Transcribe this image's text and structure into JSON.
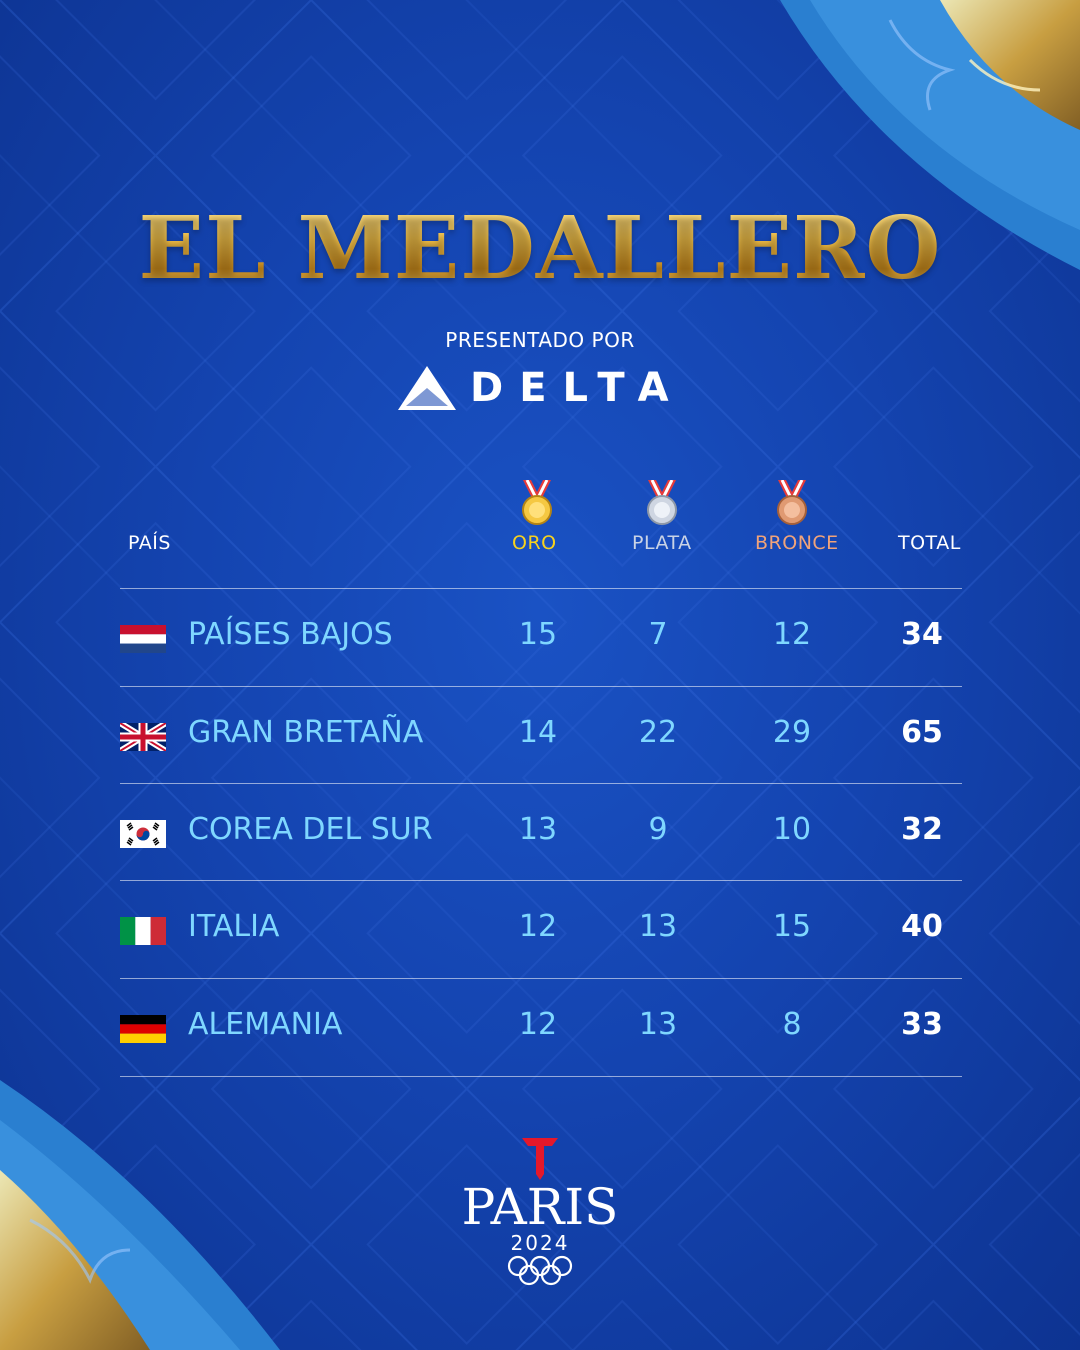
{
  "title": "EL MEDALLERO",
  "sponsor": {
    "presented_by": "PRESENTADO POR",
    "brand": "DELTA"
  },
  "table": {
    "headers": {
      "country": "PAÍS",
      "gold": "ORO",
      "silver": "PLATA",
      "bronze": "BRONCE",
      "total": "TOTAL"
    },
    "colors": {
      "gold": "#f7d21e",
      "silver": "#c9d3e6",
      "bronze": "#f0a37a",
      "values": "#7fd7ff",
      "total": "#ffffff"
    },
    "rows": [
      {
        "country": "PAÍSES BAJOS",
        "flag": "netherlands-flag-icon",
        "gold": "15",
        "silver": "7",
        "bronze": "12",
        "total": "34"
      },
      {
        "country": "GRAN BRETAÑA",
        "flag": "uk-flag-icon",
        "gold": "14",
        "silver": "22",
        "bronze": "29",
        "total": "65"
      },
      {
        "country": "COREA DEL SUR",
        "flag": "south-korea-flag-icon",
        "gold": "13",
        "silver": "9",
        "bronze": "10",
        "total": "32"
      },
      {
        "country": "ITALIA",
        "flag": "italy-flag-icon",
        "gold": "12",
        "silver": "13",
        "bronze": "15",
        "total": "40"
      },
      {
        "country": "ALEMANIA",
        "flag": "germany-flag-icon",
        "gold": "12",
        "silver": "13",
        "bronze": "8",
        "total": "33"
      }
    ]
  },
  "footer": {
    "city": "PARIS",
    "year": "2024"
  }
}
